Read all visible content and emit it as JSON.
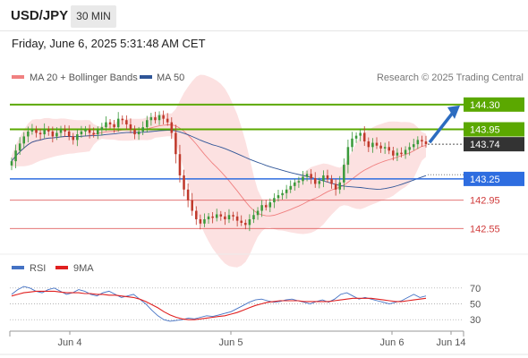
{
  "header": {
    "symbol": "USD/JPY",
    "timeframe": "30 MIN",
    "timestamp": "Friday, June 6, 2025 5:31:48 AM CET"
  },
  "legend": {
    "ma20_label": "MA 20 + Bollinger Bands",
    "ma50_label": "MA 50",
    "credit": "Research © 2025 Trading Central",
    "ma20_color": "#f08080",
    "ma50_color": "#2f5597"
  },
  "rsi_legend": {
    "rsi_label": "RSI",
    "ma_label": "9MA",
    "rsi_color": "#4472c4",
    "ma_color": "#e02020"
  },
  "colors": {
    "bull": "#3a9a3a",
    "bear": "#c0392b",
    "band_fill": "#fcdcdc",
    "resistance": "#5ba800",
    "pivot": "#2e6de0",
    "support": "#e06060",
    "arrow": "#2c6cc0",
    "price_box": "#333333"
  },
  "chart_data": [
    {
      "type": "candlestick",
      "title": "USD/JPY 30 MIN",
      "x_tick_labels": [
        "Jun 4",
        "Jun 5",
        "Jun 6",
        "Jun 14"
      ],
      "ylim": [
        142.2,
        144.5
      ],
      "levels": [
        {
          "value": 144.3,
          "label": "144.30",
          "kind": "resistance"
        },
        {
          "value": 143.95,
          "label": "143.95",
          "kind": "resistance"
        },
        {
          "value": 143.74,
          "label": "143.74",
          "kind": "last-price"
        },
        {
          "value": 143.25,
          "label": "143.25",
          "kind": "pivot"
        },
        {
          "value": 142.95,
          "label": "142.95",
          "kind": "support"
        },
        {
          "value": 142.55,
          "label": "142.55",
          "kind": "support"
        }
      ],
      "closes": [
        143.5,
        143.65,
        143.75,
        143.85,
        143.92,
        143.95,
        143.9,
        143.88,
        143.95,
        143.92,
        143.85,
        143.9,
        143.95,
        143.92,
        143.85,
        143.8,
        143.88,
        143.92,
        143.95,
        143.9,
        143.88,
        143.94,
        143.98,
        144.05,
        144.02,
        143.98,
        144.1,
        144.08,
        144.02,
        143.95,
        143.88,
        143.92,
        143.98,
        144.08,
        144.12,
        144.08,
        144.15,
        144.1,
        144.05,
        143.9,
        143.6,
        143.3,
        143.1,
        142.95,
        142.8,
        142.68,
        142.62,
        142.68,
        142.72,
        142.7,
        142.75,
        142.72,
        142.68,
        142.74,
        142.72,
        142.66,
        142.63,
        142.6,
        142.68,
        142.74,
        142.8,
        142.88,
        142.85,
        142.92,
        142.98,
        143.02,
        143.05,
        143.1,
        143.15,
        143.2,
        143.22,
        143.28,
        143.32,
        143.26,
        143.18,
        143.22,
        143.3,
        143.25,
        143.18,
        143.1,
        143.2,
        143.45,
        143.7,
        143.82,
        143.86,
        143.9,
        143.78,
        143.7,
        143.76,
        143.72,
        143.68,
        143.7,
        143.65,
        143.58,
        143.62,
        143.6,
        143.66,
        143.7,
        143.74,
        143.8,
        143.78,
        143.74
      ]
    },
    {
      "type": "line",
      "title": "RSI",
      "ylim": [
        20,
        80
      ],
      "y_ticks": [
        70,
        50,
        30
      ],
      "series": [
        {
          "name": "RSI",
          "values": [
            62,
            68,
            72,
            70,
            66,
            64,
            68,
            70,
            66,
            62,
            64,
            68,
            66,
            62,
            60,
            64,
            66,
            62,
            58,
            60,
            62,
            56,
            50,
            42,
            35,
            30,
            28,
            29,
            30,
            32,
            31,
            33,
            35,
            34,
            36,
            38,
            40,
            44,
            48,
            52,
            55,
            56,
            54,
            52,
            53,
            55,
            56,
            54,
            52,
            50,
            53,
            55,
            52,
            56,
            62,
            64,
            60,
            56,
            58,
            56,
            54,
            52,
            50,
            52,
            54,
            58,
            62,
            58,
            60
          ]
        },
        {
          "name": "9MA",
          "values": [
            60,
            62,
            64,
            65,
            66,
            66,
            66,
            66,
            65,
            64,
            64,
            64,
            63,
            63,
            62,
            62,
            61,
            61,
            60,
            59,
            58,
            56,
            53,
            49,
            45,
            40,
            36,
            33,
            31,
            30,
            30,
            31,
            32,
            33,
            34,
            35,
            37,
            39,
            42,
            45,
            48,
            50,
            52,
            53,
            54,
            54,
            54,
            54,
            53,
            53,
            53,
            53,
            53,
            54,
            55,
            56,
            57,
            57,
            57,
            57,
            56,
            55,
            54,
            53,
            53,
            54,
            55,
            56,
            57
          ]
        }
      ]
    }
  ]
}
